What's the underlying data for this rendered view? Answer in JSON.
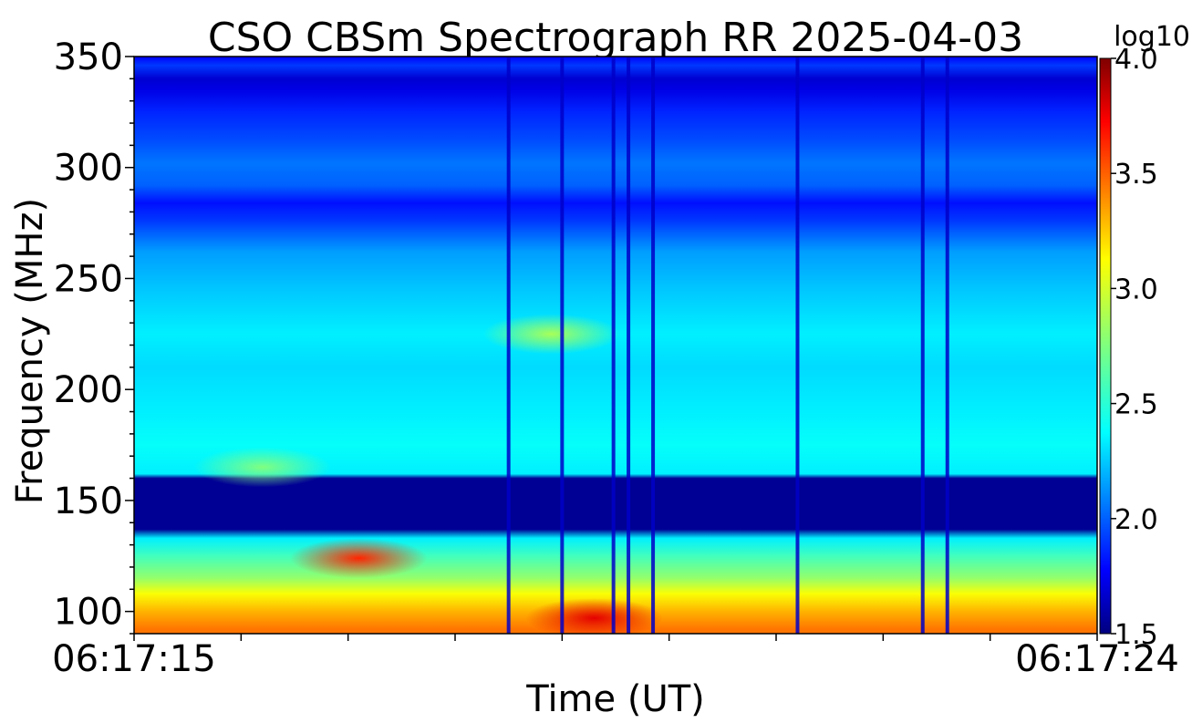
{
  "chart_data": {
    "type": "heatmap",
    "title": "CSO CBSm Spectrograph RR 2025-04-03",
    "xlabel": "Time (UT)",
    "ylabel": "Frequency (MHz)",
    "x_tick_labels": [
      "06:17:15",
      "06:17:24"
    ],
    "x_range_seconds": [
      0,
      9
    ],
    "ylim": [
      90,
      350
    ],
    "y_ticks": [
      100,
      150,
      200,
      250,
      300,
      350
    ],
    "colorbar": {
      "label": "log10",
      "range": [
        1.5,
        4.0
      ],
      "ticks": [
        "1.5",
        "2.0",
        "2.5",
        "3.0",
        "3.5",
        "4.0"
      ],
      "colormap": "jet"
    },
    "frequency_profile": [
      {
        "f": 92,
        "v": 3.4
      },
      {
        "f": 100,
        "v": 3.25
      },
      {
        "f": 108,
        "v": 3.05
      },
      {
        "f": 115,
        "v": 2.8
      },
      {
        "f": 125,
        "v": 2.6
      },
      {
        "f": 133,
        "v": 2.4
      },
      {
        "f": 137,
        "v": 1.55
      },
      {
        "f": 160,
        "v": 1.55
      },
      {
        "f": 162,
        "v": 2.4
      },
      {
        "f": 175,
        "v": 2.45
      },
      {
        "f": 190,
        "v": 2.4
      },
      {
        "f": 210,
        "v": 2.35
      },
      {
        "f": 225,
        "v": 2.4
      },
      {
        "f": 245,
        "v": 2.3
      },
      {
        "f": 262,
        "v": 2.2
      },
      {
        "f": 276,
        "v": 1.95
      },
      {
        "f": 284,
        "v": 1.85
      },
      {
        "f": 292,
        "v": 2.05
      },
      {
        "f": 302,
        "v": 2.1
      },
      {
        "f": 312,
        "v": 2.0
      },
      {
        "f": 325,
        "v": 1.9
      },
      {
        "f": 335,
        "v": 1.75
      },
      {
        "f": 340,
        "v": 1.7
      },
      {
        "f": 346,
        "v": 1.95
      },
      {
        "f": 350,
        "v": 1.8
      }
    ],
    "features": [
      {
        "kind": "blob",
        "t_sec": 2.1,
        "f_mhz": 124,
        "level": 3.6
      },
      {
        "kind": "blob",
        "t_sec": 3.9,
        "f_mhz": 225,
        "level": 2.85
      },
      {
        "kind": "blob",
        "t_sec": 4.3,
        "f_mhz": 97,
        "level": 3.75
      },
      {
        "kind": "blob",
        "t_sec": 1.2,
        "f_mhz": 165,
        "level": 2.75
      }
    ],
    "dropouts_sec": [
      3.5,
      4.0,
      4.48,
      4.62,
      4.85,
      6.2,
      7.37,
      7.6
    ]
  }
}
